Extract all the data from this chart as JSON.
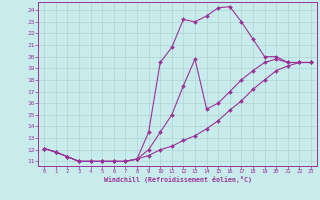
{
  "xlabel": "Windchill (Refroidissement éolien,°C)",
  "bg_color": "#c8ecec",
  "line_color": "#993399",
  "grid_color": "#b0d4d4",
  "xlim_min": -0.5,
  "xlim_max": 23.5,
  "ylim_min": 10.6,
  "ylim_max": 24.7,
  "xticks": [
    0,
    1,
    2,
    3,
    4,
    5,
    6,
    7,
    8,
    9,
    10,
    11,
    12,
    13,
    14,
    15,
    16,
    17,
    18,
    19,
    20,
    21,
    22,
    23
  ],
  "yticks": [
    11,
    12,
    13,
    14,
    15,
    16,
    17,
    18,
    19,
    20,
    21,
    22,
    23,
    24
  ],
  "curve1_x": [
    0,
    1,
    2,
    3,
    4,
    5,
    6,
    7,
    8,
    9,
    10,
    11,
    12,
    13,
    14,
    15,
    16,
    17,
    18,
    19,
    20,
    21,
    22,
    23
  ],
  "curve1_y": [
    12.1,
    11.8,
    11.4,
    11.0,
    11.0,
    11.0,
    11.0,
    11.0,
    11.2,
    11.5,
    12.0,
    12.3,
    12.8,
    13.2,
    13.8,
    14.5,
    15.4,
    16.2,
    17.2,
    18.0,
    18.8,
    19.2,
    19.5,
    19.5
  ],
  "curve2_x": [
    0,
    1,
    2,
    3,
    4,
    5,
    6,
    7,
    8,
    9,
    10,
    11,
    12,
    13,
    14,
    15,
    16,
    17,
    18,
    19,
    20,
    21,
    22,
    23
  ],
  "curve2_y": [
    12.1,
    11.8,
    11.4,
    11.0,
    11.0,
    11.0,
    11.0,
    11.0,
    11.2,
    12.0,
    13.5,
    15.0,
    17.5,
    19.8,
    15.5,
    16.0,
    17.0,
    18.0,
    18.8,
    19.5,
    19.8,
    19.5,
    19.5,
    19.5
  ],
  "curve3_x": [
    0,
    1,
    2,
    3,
    4,
    5,
    6,
    7,
    8,
    9,
    10,
    11,
    12,
    13,
    14,
    15,
    16,
    17,
    18,
    19,
    20,
    21,
    22,
    23
  ],
  "curve3_y": [
    12.1,
    11.8,
    11.4,
    11.0,
    11.0,
    11.0,
    11.0,
    11.0,
    11.2,
    13.5,
    19.5,
    20.8,
    23.2,
    23.0,
    23.5,
    24.2,
    24.3,
    23.0,
    21.5,
    20.0,
    20.0,
    19.5,
    19.5,
    19.5
  ]
}
